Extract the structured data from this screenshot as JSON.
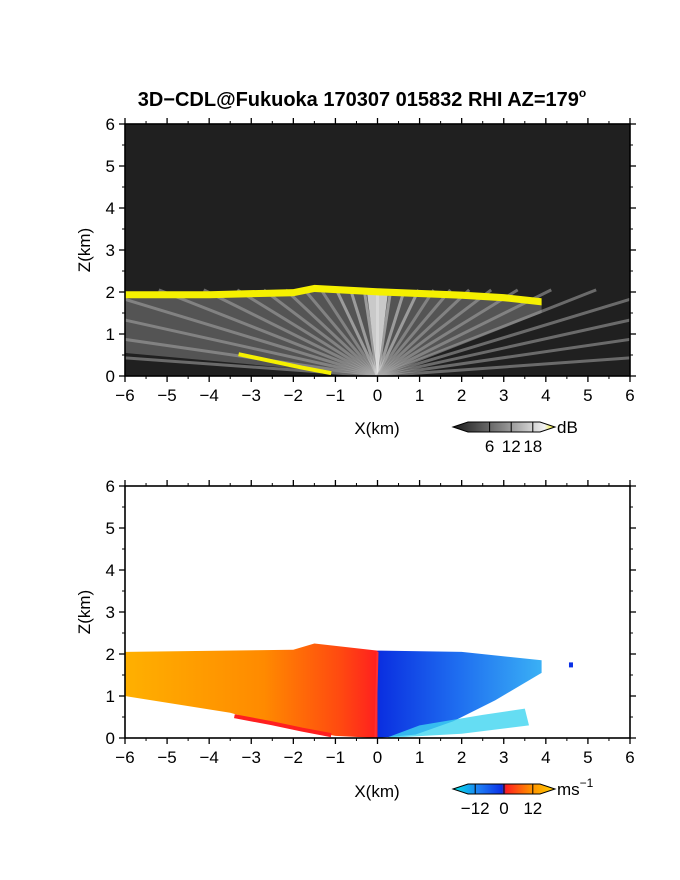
{
  "figure": {
    "title_main": "3D−CDL@Fukuoka 170307 015832 RHI AZ=179",
    "title_degree": "o"
  },
  "colors": {
    "background_dark": "#202020",
    "cloud_top_yellow": "#f5f000",
    "velocity_ramp": [
      "#00e5e5",
      "#1f7ff5",
      "#0a30e6",
      "#ff1f1f",
      "#ff8a00",
      "#ffd000"
    ]
  },
  "chart_data": [
    {
      "type": "heatmap",
      "panel": "backscatter",
      "xlabel": "X(km)",
      "ylabel": "Z(km)",
      "xlim": [
        -6,
        6
      ],
      "ylim": [
        0,
        6
      ],
      "xticks": [
        -6,
        -5,
        -4,
        -3,
        -2,
        -1,
        0,
        1,
        2,
        3,
        4,
        5,
        6
      ],
      "yticks": [
        0,
        1,
        2,
        3,
        4,
        5,
        6
      ],
      "xtick_labels": [
        "−6",
        "−5",
        "−4",
        "−3",
        "−2",
        "−1",
        "0",
        "1",
        "2",
        "3",
        "4",
        "5",
        "6"
      ],
      "ytick_labels": [
        "0",
        "1",
        "2",
        "3",
        "4",
        "5",
        "6"
      ],
      "colorbar": {
        "unit": "dB",
        "ticks": [
          "6",
          "12",
          "18"
        ],
        "range": [
          0,
          20
        ]
      },
      "cloud_top_layer": [
        {
          "x": -6.0,
          "z": 1.97
        },
        {
          "x": -4.0,
          "z": 1.97
        },
        {
          "x": -2.0,
          "z": 2.02
        },
        {
          "x": -1.5,
          "z": 2.12
        },
        {
          "x": 0.0,
          "z": 2.04
        },
        {
          "x": 2.0,
          "z": 1.96
        },
        {
          "x": 3.0,
          "z": 1.9
        },
        {
          "x": 3.9,
          "z": 1.8
        }
      ],
      "low_signal_edge": [
        {
          "x": -3.3,
          "z": 0.52
        },
        {
          "x": -2.5,
          "z": 0.35
        },
        {
          "x": -1.8,
          "z": 0.2
        },
        {
          "x": -1.1,
          "z": 0.07
        }
      ]
    },
    {
      "type": "heatmap",
      "panel": "doppler_velocity",
      "xlabel": "X(km)",
      "ylabel": "Z(km)",
      "xlim": [
        -6,
        6
      ],
      "ylim": [
        0,
        6
      ],
      "xticks": [
        -6,
        -5,
        -4,
        -3,
        -2,
        -1,
        0,
        1,
        2,
        3,
        4,
        5,
        6
      ],
      "yticks": [
        0,
        1,
        2,
        3,
        4,
        5,
        6
      ],
      "xtick_labels": [
        "−6",
        "−5",
        "−4",
        "−3",
        "−2",
        "−1",
        "0",
        "1",
        "2",
        "3",
        "4",
        "5",
        "6"
      ],
      "ytick_labels": [
        "0",
        "1",
        "2",
        "3",
        "4",
        "5",
        "6"
      ],
      "colorbar": {
        "unit": "ms",
        "unit_sup": "−1",
        "ticks": [
          "−12",
          "0",
          "12"
        ],
        "range": [
          -15,
          15
        ]
      },
      "echo_top": [
        {
          "x": -6.0,
          "z": 2.05
        },
        {
          "x": -2.0,
          "z": 2.1
        },
        {
          "x": -1.5,
          "z": 2.25
        },
        {
          "x": 0.0,
          "z": 2.08
        },
        {
          "x": 2.0,
          "z": 2.05
        },
        {
          "x": 3.9,
          "z": 1.85
        }
      ],
      "velocity_sign": {
        "x_lt_0": 8,
        "x_gt_0": -8
      }
    }
  ]
}
